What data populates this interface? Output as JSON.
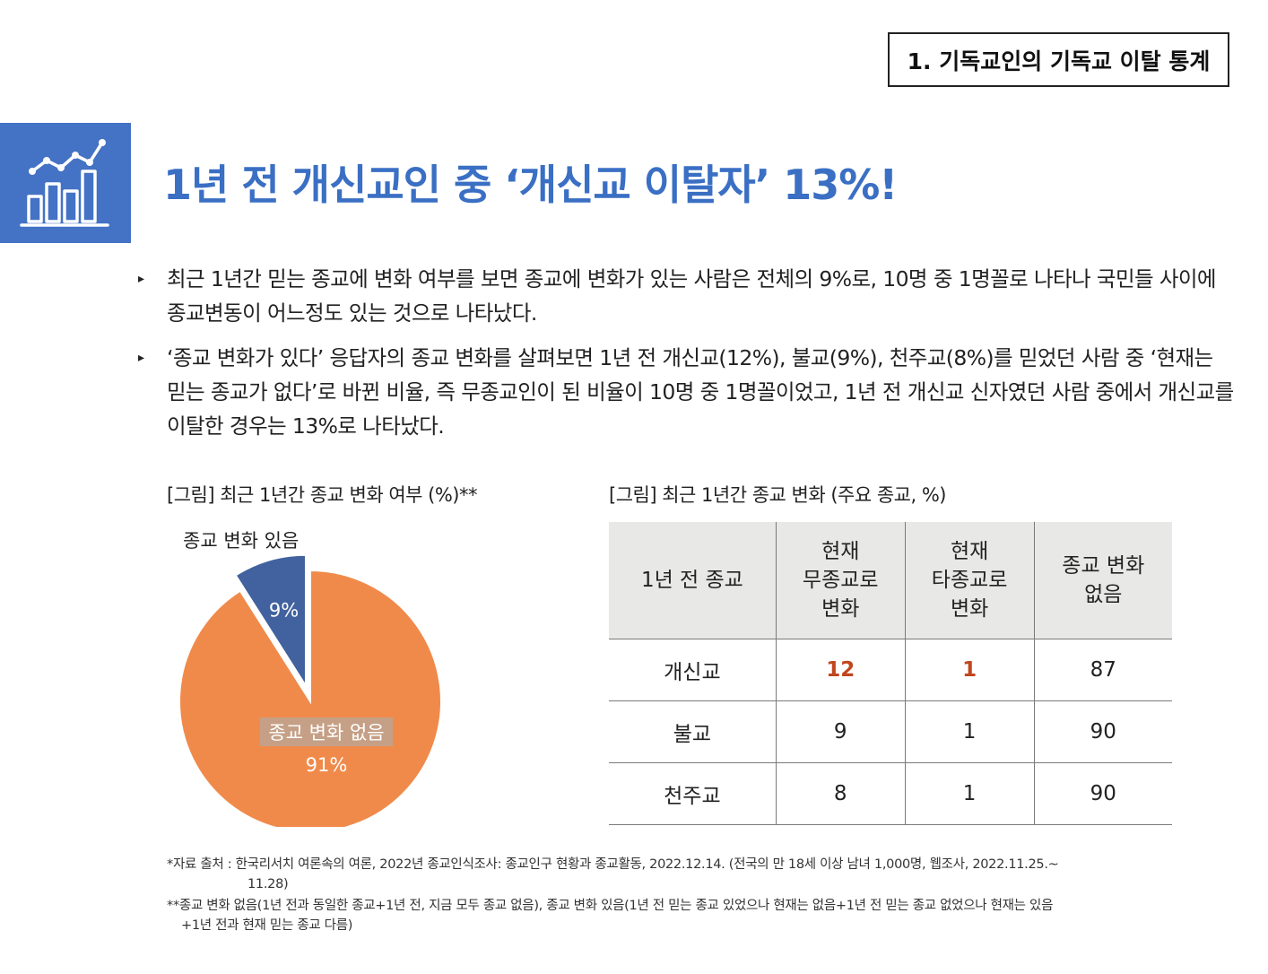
{
  "section_tag": "1. 기독교인의 기독교 이탈 통계",
  "icon": "bar-chart-growth-icon",
  "headline": "1년 전 개신교인 중 ‘개신교 이탈자’ 13%!",
  "bullets": [
    "최근 1년간 믿는 종교에 변화 여부를 보면 종교에 변화가 있는 사람은 전체의 9%로, 10명 중 1명꼴로 나타나 국민들 사이에 종교변동이 어느정도 있는 것으로 나타났다.",
    "‘종교 변화가 있다’ 응답자의 종교 변화를 살펴보면 1년 전 개신교(12%), 불교(9%), 천주교(8%)를 믿었던 사람 중 ‘현재는 믿는 종교가 없다’로 바뀐 비율, 즉 무종교인이 된 비율이 10명 중 1명꼴이었고, 1년 전 개신교 신자였던 사람 중에서 개신교를 이탈한 경우는 13%로 나타났다."
  ],
  "figure1": {
    "caption": "[그림] 최근 1년간 종교 변화 여부 (%)**"
  },
  "figure2": {
    "caption": "[그림] 최근 1년간 종교 변화 (주요 종교, %)",
    "headers": [
      "1년 전 종교",
      "현재\n무종교로\n변화",
      "현재\n타종교로\n변화",
      "종교 변화\n없음"
    ],
    "rows": [
      [
        "개신교",
        "12",
        "1",
        "87"
      ],
      [
        "불교",
        "9",
        "1",
        "90"
      ],
      [
        "천주교",
        "8",
        "1",
        "90"
      ]
    ],
    "highlight_color": "#c0461e"
  },
  "chart_data": {
    "type": "pie",
    "slices": [
      {
        "label": "종교 변화 있음",
        "value": 9,
        "value_label": "9%",
        "color": "#41629e"
      },
      {
        "label": "종교 변화 없음",
        "value": 91,
        "value_label": "91%",
        "color": "#f08a4b"
      }
    ]
  },
  "notes": {
    "source_line1": "*자료 출처 : 한국리서치 여론속의 여론, 2022년 종교인식조사: 종교인구 현황과 종교활동, 2022.12.14. (전국의 만 18세 이상 남녀 1,000명, 웹조사, 2022.11.25.~",
    "source_line2": "11.28)",
    "def_line1": "**종교 변화 없음(1년 전과 동일한 종교+1년 전, 지금 모두 종교 없음), 종교 변화 있음(1년 전 믿는 종교 있었으나 현재는 없음+1년 전 믿는 종교 없었으나 현재는 있음",
    "def_line2": "+1년 전과 현재 믿는 종교 다름)"
  },
  "colors": {
    "accent": "#3a6fc4",
    "icon_bg": "#4472c4",
    "table_header_bg": "#e8e8e6"
  }
}
